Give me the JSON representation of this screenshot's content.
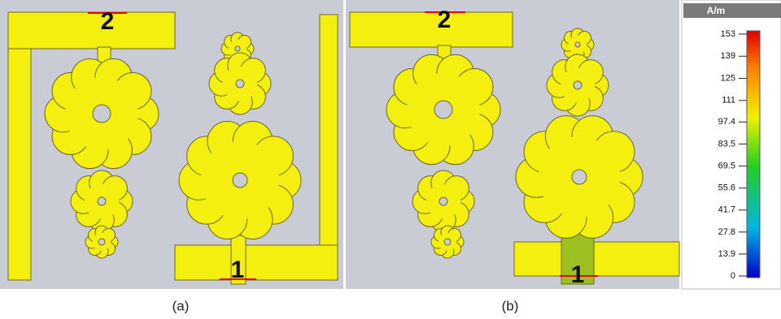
{
  "panels": [
    {
      "label": "(a)",
      "ports": [
        "1",
        "2"
      ]
    },
    {
      "label": "(b)",
      "ports": [
        "1",
        "2"
      ]
    }
  ],
  "colorbar": {
    "title": "A/m",
    "ticks": [
      153,
      139,
      125,
      111,
      97.4,
      83.5,
      69.5,
      55.6,
      41.7,
      27.8,
      13.9,
      0
    ]
  }
}
